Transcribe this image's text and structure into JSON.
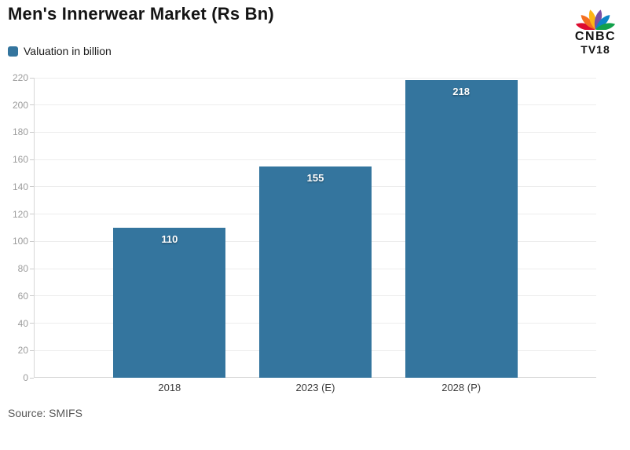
{
  "header": {
    "title": "Men's Innerwear Market (Rs Bn)",
    "logo": {
      "line1": "CNBC",
      "line2": "TV18",
      "feather_colors": [
        "#dd0b2f",
        "#f36f21",
        "#fdb515",
        "#794fa5",
        "#0c85c7",
        "#12a14b"
      ]
    }
  },
  "legend": {
    "label": "Valuation in billion"
  },
  "source": {
    "text": "Source: SMIFS"
  },
  "chart_data": {
    "type": "bar",
    "title": "Men's Innerwear Market (Rs Bn)",
    "series_name": "Valuation in billion",
    "categories": [
      "2018",
      "2023 (E)",
      "2028 (P)"
    ],
    "values": [
      110,
      155,
      218
    ],
    "xlabel": "",
    "ylabel": "",
    "ylim": [
      0,
      220
    ],
    "ytick_step": 20,
    "grid": true,
    "legend_position": "top-left",
    "bar_color": "#34759E",
    "value_label_color": "#ffffff"
  }
}
